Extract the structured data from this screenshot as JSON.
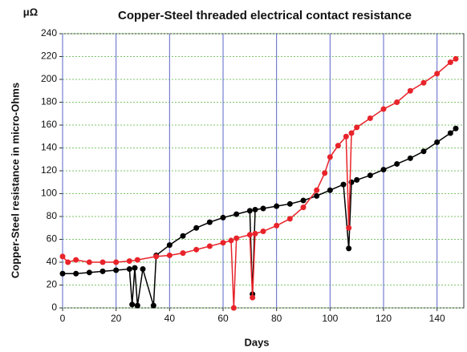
{
  "chart_data": {
    "type": "scatter",
    "title": "Copper-Steel threaded electrical contact resistance",
    "unit_label": "μΩ",
    "x_label": "Days",
    "y_label": "Copper-Steel resistance in micro-Ohms",
    "xlim": [
      0,
      150
    ],
    "xticks": [
      0,
      20,
      40,
      60,
      80,
      100,
      120,
      140
    ],
    "ylim": [
      0,
      240
    ],
    "yticks": [
      0,
      20,
      40,
      60,
      80,
      100,
      120,
      140,
      160,
      180,
      200,
      220,
      240
    ],
    "grid": true,
    "series": [
      {
        "color": "#000000",
        "x": [
          0,
          5,
          10,
          15,
          20,
          25,
          26,
          27,
          28,
          30,
          34,
          35,
          40,
          45,
          50,
          55,
          60,
          65,
          70,
          71,
          72,
          75,
          80,
          85,
          90,
          95,
          100,
          105,
          107,
          108,
          110,
          115,
          120,
          125,
          130,
          135,
          140,
          145,
          147
        ],
        "values": [
          30,
          30,
          31,
          32,
          33,
          34,
          3,
          35,
          2,
          34,
          2,
          46,
          55,
          63,
          70,
          75,
          79,
          82,
          85,
          12,
          86,
          87,
          89,
          91,
          94,
          98,
          103,
          108,
          52,
          110,
          112,
          116,
          121,
          126,
          131,
          137,
          145,
          153,
          157
        ]
      },
      {
        "color": "#e8232a",
        "x": [
          0,
          2,
          5,
          10,
          15,
          20,
          25,
          28,
          35,
          40,
          45,
          50,
          55,
          60,
          63,
          64,
          65,
          70,
          71,
          72,
          75,
          80,
          85,
          90,
          95,
          98,
          100,
          103,
          106,
          107,
          108,
          110,
          115,
          120,
          125,
          130,
          135,
          140,
          145,
          147
        ],
        "values": [
          45,
          40,
          42,
          40,
          40,
          40,
          41,
          42,
          45,
          46,
          48,
          51,
          54,
          57,
          59,
          0,
          61,
          64,
          9,
          65,
          67,
          72,
          78,
          88,
          103,
          118,
          132,
          142,
          150,
          70,
          153,
          158,
          166,
          174,
          180,
          190,
          197,
          205,
          215,
          218
        ]
      }
    ]
  }
}
